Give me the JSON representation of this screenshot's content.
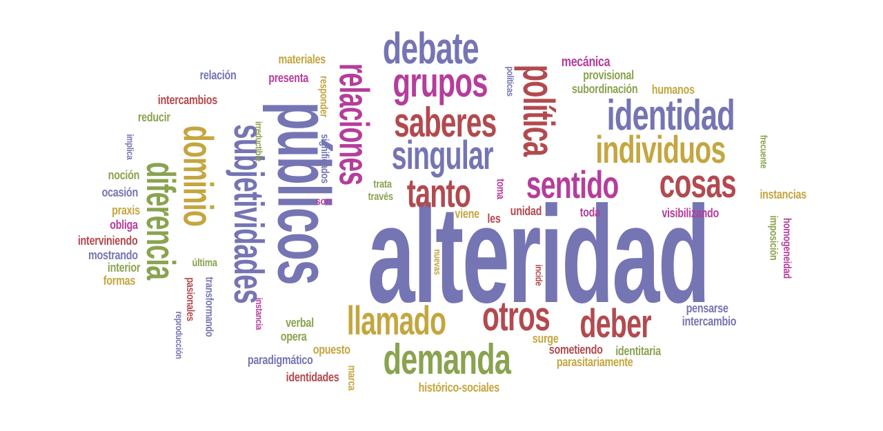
{
  "palette": {
    "purple": "#7575b4",
    "red": "#b24a4f",
    "olive": "#8aa34f",
    "gold": "#c4a640",
    "magenta": "#b53d9b"
  },
  "words": [
    {
      "text": "alteridad",
      "color": "purple"
    },
    {
      "text": "públicos",
      "color": "purple"
    },
    {
      "text": "subjetividades",
      "color": "purple"
    },
    {
      "text": "dominio",
      "color": "gold"
    },
    {
      "text": "diferencia",
      "color": "olive"
    },
    {
      "text": "relaciones",
      "color": "magenta"
    },
    {
      "text": "debate",
      "color": "purple"
    },
    {
      "text": "grupos",
      "color": "magenta"
    },
    {
      "text": "política",
      "color": "red"
    },
    {
      "text": "saberes",
      "color": "red"
    },
    {
      "text": "identidad",
      "color": "purple"
    },
    {
      "text": "singular",
      "color": "purple"
    },
    {
      "text": "individuos",
      "color": "gold"
    },
    {
      "text": "sentido",
      "color": "magenta"
    },
    {
      "text": "cosas",
      "color": "red"
    },
    {
      "text": "tanto",
      "color": "red"
    },
    {
      "text": "llamado",
      "color": "gold"
    },
    {
      "text": "otros",
      "color": "red"
    },
    {
      "text": "deber",
      "color": "red"
    },
    {
      "text": "demanda",
      "color": "olive"
    },
    {
      "text": "materiales",
      "color": "gold"
    },
    {
      "text": "relación",
      "color": "purple"
    },
    {
      "text": "presenta",
      "color": "magenta"
    },
    {
      "text": "intercambios",
      "color": "red"
    },
    {
      "text": "reducir",
      "color": "olive"
    },
    {
      "text": "implica",
      "color": "purple"
    },
    {
      "text": "noción",
      "color": "olive"
    },
    {
      "text": "ocasión",
      "color": "purple"
    },
    {
      "text": "praxis",
      "color": "gold"
    },
    {
      "text": "obliga",
      "color": "magenta"
    },
    {
      "text": "interviniendo",
      "color": "red"
    },
    {
      "text": "mostrando",
      "color": "purple"
    },
    {
      "text": "interior",
      "color": "olive"
    },
    {
      "text": "formas",
      "color": "gold"
    },
    {
      "text": "irreductible",
      "color": "olive"
    },
    {
      "text": "responder",
      "color": "gold"
    },
    {
      "text": "significados",
      "color": "purple"
    },
    {
      "text": "son",
      "color": "magenta"
    },
    {
      "text": "políticas",
      "color": "purple"
    },
    {
      "text": "mecánica",
      "color": "magenta"
    },
    {
      "text": "provisional",
      "color": "olive"
    },
    {
      "text": "subordinación",
      "color": "olive"
    },
    {
      "text": "humanos",
      "color": "gold"
    },
    {
      "text": "frecuente",
      "color": "olive"
    },
    {
      "text": "instancias",
      "color": "gold"
    },
    {
      "text": "trata",
      "color": "olive"
    },
    {
      "text": "través",
      "color": "olive"
    },
    {
      "text": "toma",
      "color": "magenta"
    },
    {
      "text": "unidad",
      "color": "red"
    },
    {
      "text": "toda",
      "color": "magenta"
    },
    {
      "text": "visibilizando",
      "color": "magenta"
    },
    {
      "text": "viene",
      "color": "gold"
    },
    {
      "text": "les",
      "color": "red"
    },
    {
      "text": "imposición",
      "color": "olive"
    },
    {
      "text": "homogeneidad",
      "color": "magenta"
    },
    {
      "text": "última",
      "color": "olive"
    },
    {
      "text": "transformando",
      "color": "purple"
    },
    {
      "text": "pasionales",
      "color": "red"
    },
    {
      "text": "reproducción",
      "color": "purple"
    },
    {
      "text": "instancia",
      "color": "magenta"
    },
    {
      "text": "nuevas",
      "color": "gold"
    },
    {
      "text": "incide",
      "color": "red"
    },
    {
      "text": "verbal",
      "color": "olive"
    },
    {
      "text": "opera",
      "color": "olive"
    },
    {
      "text": "opuesto",
      "color": "gold"
    },
    {
      "text": "paradigmático",
      "color": "purple"
    },
    {
      "text": "identidades",
      "color": "red"
    },
    {
      "text": "marca",
      "color": "gold"
    },
    {
      "text": "histórico-sociales",
      "color": "gold"
    },
    {
      "text": "surge",
      "color": "gold"
    },
    {
      "text": "sometiendo",
      "color": "red"
    },
    {
      "text": "identitaria",
      "color": "olive"
    },
    {
      "text": "parasitariamente",
      "color": "gold"
    },
    {
      "text": "pensarse",
      "color": "purple"
    },
    {
      "text": "intercambio",
      "color": "purple"
    }
  ]
}
